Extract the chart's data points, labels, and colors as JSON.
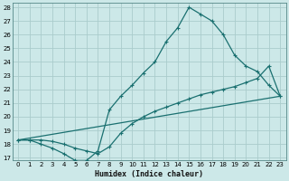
{
  "xlabel": "Humidex (Indice chaleur)",
  "bg_color": "#cce8e8",
  "grid_color": "#aacccc",
  "line_color": "#1a7070",
  "xlim": [
    -0.5,
    23.5
  ],
  "ylim": [
    16.8,
    28.3
  ],
  "yticks": [
    17,
    18,
    19,
    20,
    21,
    22,
    23,
    24,
    25,
    26,
    27,
    28
  ],
  "xticks": [
    0,
    1,
    2,
    3,
    4,
    5,
    6,
    7,
    8,
    9,
    10,
    11,
    12,
    13,
    14,
    15,
    16,
    17,
    18,
    19,
    20,
    21,
    22,
    23
  ],
  "line1_x": [
    0,
    1,
    2,
    3,
    4,
    5,
    6,
    7,
    8,
    9,
    10,
    11,
    12,
    13,
    14,
    15,
    16,
    17,
    18,
    19,
    20,
    21,
    22,
    23
  ],
  "line1_y": [
    18.3,
    18.3,
    18.0,
    17.7,
    17.3,
    16.8,
    16.8,
    17.5,
    20.5,
    21.5,
    22.3,
    23.2,
    24.0,
    25.5,
    26.5,
    28.0,
    27.5,
    27.0,
    26.0,
    24.5,
    23.7,
    23.3,
    22.3,
    21.5
  ],
  "line2_x": [
    0,
    1,
    2,
    3,
    4,
    5,
    6,
    7,
    8,
    9,
    10,
    11,
    12,
    13,
    14,
    15,
    16,
    17,
    18,
    19,
    20,
    21,
    22,
    23
  ],
  "line2_y": [
    18.3,
    18.3,
    18.3,
    18.2,
    18.0,
    17.7,
    17.5,
    17.3,
    17.8,
    18.8,
    19.5,
    20.0,
    20.4,
    20.7,
    21.0,
    21.3,
    21.6,
    21.8,
    22.0,
    22.2,
    22.5,
    22.8,
    23.7,
    21.5
  ],
  "line3_x": [
    0,
    23
  ],
  "line3_y": [
    18.3,
    21.5
  ]
}
